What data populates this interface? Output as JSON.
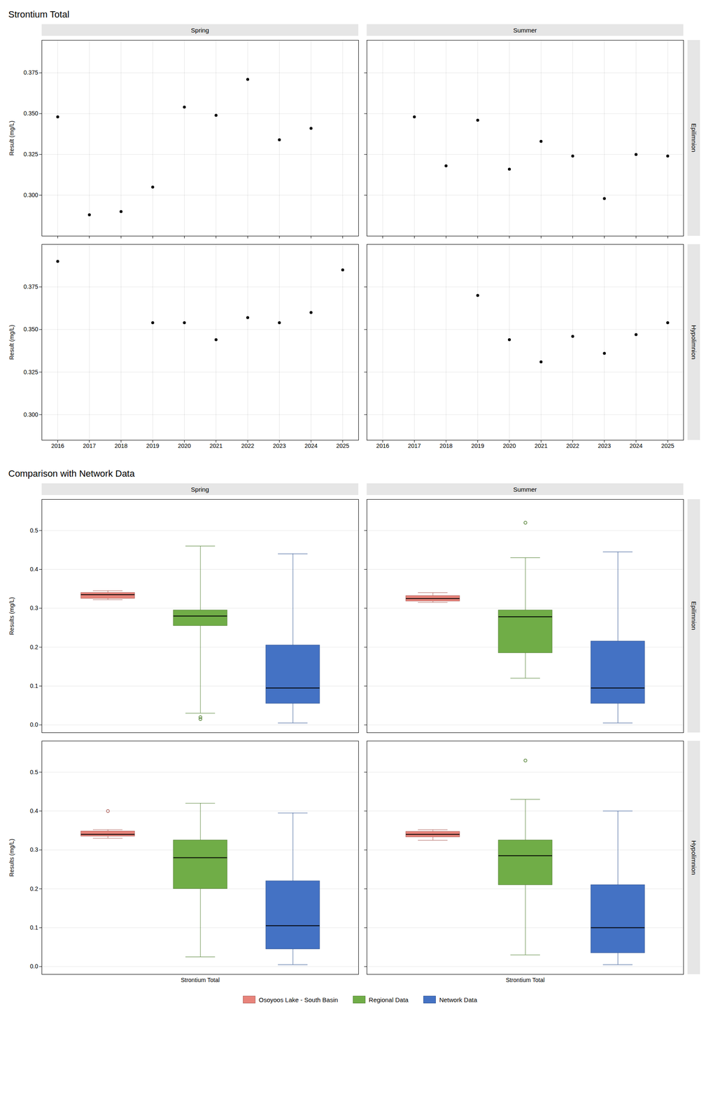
{
  "chart_data": [
    {
      "type": "scatter",
      "title": "Strontium Total",
      "ylabel": "Result (mg/L)",
      "color": "#000000",
      "grid": true,
      "xlim": [
        2015.5,
        2025.5
      ],
      "xticks": [
        2016,
        2017,
        2018,
        2019,
        2020,
        2021,
        2022,
        2023,
        2024,
        2025
      ],
      "columns": [
        "Spring",
        "Summer"
      ],
      "rows": [
        "Epilimnion",
        "Hypolimnion"
      ],
      "panels": [
        {
          "x": [
            2016,
            2017,
            2018,
            2019,
            2020,
            2021,
            2022,
            2023,
            2024
          ],
          "values": [
            0.348,
            0.288,
            0.29,
            0.305,
            0.354,
            0.349,
            0.371,
            0.334,
            0.341
          ],
          "ylim": [
            0.275,
            0.395
          ],
          "yticks": [
            {
              "value": 0.3,
              "label": "0.300"
            },
            0.325,
            {
              "value": 0.35,
              "label": "0.350"
            },
            0.375
          ]
        },
        {
          "x": [
            2017,
            2018,
            2019,
            2020,
            2021,
            2022,
            2023,
            2024,
            2025
          ],
          "values": [
            0.348,
            0.318,
            0.346,
            0.316,
            0.333,
            0.324,
            0.298,
            0.325,
            0.324
          ],
          "ylim": [
            0.275,
            0.395
          ],
          "yticks": [
            {
              "value": 0.3,
              "label": "0.300"
            },
            0.325,
            {
              "value": 0.35,
              "label": "0.350"
            },
            0.375
          ]
        },
        {
          "x": [
            2016,
            2019,
            2020,
            2021,
            2022,
            2023,
            2024,
            2025
          ],
          "values": [
            0.39,
            0.354,
            0.354,
            0.344,
            0.357,
            0.354,
            0.36,
            0.385
          ],
          "ylim": [
            0.285,
            0.4
          ],
          "yticks": [
            {
              "value": 0.3,
              "label": "0.300"
            },
            0.325,
            {
              "value": 0.35,
              "label": "0.350"
            },
            0.375
          ]
        },
        {
          "x": [
            2019,
            2020,
            2021,
            2022,
            2023,
            2024,
            2025
          ],
          "values": [
            0.37,
            0.344,
            0.331,
            0.346,
            0.336,
            0.347,
            0.354
          ],
          "ylim": [
            0.285,
            0.4
          ],
          "yticks": [
            {
              "value": 0.3,
              "label": "0.300"
            },
            0.325,
            {
              "value": 0.35,
              "label": "0.350"
            },
            0.375
          ]
        }
      ]
    },
    {
      "type": "box",
      "title": "Comparison with Network Data",
      "ylabel": "Results (mg/L)",
      "grid": "y",
      "legend": "bottom",
      "categories": [
        "Strontium Total"
      ],
      "ylim": [
        -0.02,
        0.58
      ],
      "yticks": [
        {
          "value": 0,
          "label": "0.0"
        },
        0.1,
        0.2,
        0.3,
        0.4,
        0.5
      ],
      "series": [
        {
          "name": "Osoyoos Lake - South Basin",
          "color": "#E8837A"
        },
        {
          "name": "Regional Data",
          "color": "#70AD47"
        },
        {
          "name": "Network Data",
          "color": "#4472C4"
        }
      ],
      "columns": [
        "Spring",
        "Summer"
      ],
      "rows": [
        "Epilimnion",
        "Hypolimnion"
      ],
      "panels": [
        {
          "boxes": [
            {
              "median": 0.335,
              "q1": 0.325,
              "q3": 0.34,
              "whislo": 0.322,
              "whishi": 0.345,
              "fliers": []
            },
            {
              "median": 0.28,
              "q1": 0.255,
              "q3": 0.295,
              "whislo": 0.03,
              "whishi": 0.46,
              "fliers": [
                0.02,
                0.015
              ]
            },
            {
              "median": 0.095,
              "q1": 0.055,
              "q3": 0.205,
              "whislo": 0.005,
              "whishi": 0.44,
              "fliers": []
            }
          ]
        },
        {
          "boxes": [
            {
              "median": 0.325,
              "q1": 0.318,
              "q3": 0.332,
              "whislo": 0.315,
              "whishi": 0.34,
              "fliers": []
            },
            {
              "median": 0.278,
              "q1": 0.185,
              "q3": 0.295,
              "whislo": 0.12,
              "whishi": 0.43,
              "fliers": [
                0.52
              ]
            },
            {
              "median": 0.095,
              "q1": 0.055,
              "q3": 0.215,
              "whislo": 0.005,
              "whishi": 0.445,
              "fliers": []
            }
          ]
        },
        {
          "boxes": [
            {
              "median": 0.34,
              "q1": 0.335,
              "q3": 0.348,
              "whislo": 0.33,
              "whishi": 0.352,
              "fliers": [
                0.4
              ]
            },
            {
              "median": 0.28,
              "q1": 0.2,
              "q3": 0.325,
              "whislo": 0.025,
              "whishi": 0.42,
              "fliers": []
            },
            {
              "median": 0.105,
              "q1": 0.045,
              "q3": 0.22,
              "whislo": 0.005,
              "whishi": 0.395,
              "fliers": []
            }
          ]
        },
        {
          "boxes": [
            {
              "median": 0.34,
              "q1": 0.333,
              "q3": 0.347,
              "whislo": 0.325,
              "whishi": 0.352,
              "fliers": []
            },
            {
              "median": 0.285,
              "q1": 0.21,
              "q3": 0.325,
              "whislo": 0.03,
              "whishi": 0.43,
              "fliers": [
                0.53
              ]
            },
            {
              "median": 0.1,
              "q1": 0.035,
              "q3": 0.21,
              "whislo": 0.005,
              "whishi": 0.4,
              "fliers": []
            }
          ]
        }
      ]
    }
  ]
}
